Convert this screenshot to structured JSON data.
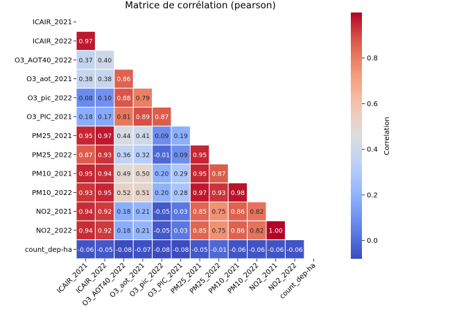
{
  "chart_data": {
    "type": "heatmap",
    "title": "Matrice de corrélation (pearson)",
    "variables": [
      "ICAIR_2021",
      "ICAIR_2022",
      "O3_AOT40_2022",
      "O3_aot_2021",
      "O3_pic_2022",
      "O3_PIC_2021",
      "PM25_2021",
      "PM25_2022",
      "PM10_2021",
      "PM10_2022",
      "NO2_2021",
      "NO2_2022",
      "count_dep-ha"
    ],
    "mask": "upper-triangle-including-diagonal",
    "values": [
      [],
      [
        0.97
      ],
      [
        0.37,
        0.4
      ],
      [
        0.38,
        0.38,
        0.86
      ],
      [
        0.08,
        0.1,
        0.88,
        0.79
      ],
      [
        0.18,
        0.17,
        0.81,
        0.89,
        0.87
      ],
      [
        0.95,
        0.97,
        0.44,
        0.41,
        0.09,
        0.19
      ],
      [
        0.87,
        0.93,
        0.36,
        0.32,
        -0.01,
        0.09,
        0.95
      ],
      [
        0.95,
        0.94,
        0.49,
        0.5,
        0.2,
        0.29,
        0.95,
        0.87
      ],
      [
        0.93,
        0.95,
        0.52,
        0.51,
        0.2,
        0.28,
        0.97,
        0.93,
        0.98
      ],
      [
        0.94,
        0.92,
        0.18,
        0.21,
        -0.05,
        0.03,
        0.85,
        0.75,
        0.86,
        0.82
      ],
      [
        0.94,
        0.92,
        0.18,
        0.21,
        -0.05,
        0.03,
        0.85,
        0.75,
        0.86,
        0.82,
        1.0
      ],
      [
        -0.06,
        -0.05,
        -0.08,
        -0.07,
        -0.08,
        -0.08,
        -0.05,
        -0.01,
        -0.06,
        -0.06,
        -0.06,
        -0.06
      ]
    ],
    "value_labels": [
      [],
      [
        "0.97"
      ],
      [
        "0.37",
        "0.40"
      ],
      [
        "0.38",
        "0.38",
        "0.86"
      ],
      [
        "0.08",
        "0.10",
        "0.88",
        "0.79"
      ],
      [
        "0.18",
        "0.17",
        "0.81",
        "0.89",
        "0.87"
      ],
      [
        "0.95",
        "0.97",
        "0.44",
        "0.41",
        "0.09",
        "0.19"
      ],
      [
        "0.87",
        "0.93",
        "0.36",
        "0.32",
        "-0.01",
        "0.09",
        "0.95"
      ],
      [
        "0.95",
        "0.94",
        "0.49",
        "0.50",
        "0.20",
        "0.29",
        "0.95",
        "0.87"
      ],
      [
        "0.93",
        "0.95",
        "0.52",
        "0.51",
        "0.20",
        "0.28",
        "0.97",
        "0.93",
        "0.98"
      ],
      [
        "0.94",
        "0.92",
        "0.18",
        "0.21",
        "-0.05",
        "0.03",
        "0.85",
        "0.75",
        "0.86",
        "0.82"
      ],
      [
        "0.94",
        "0.92",
        "0.18",
        "0.21",
        "-0.05",
        "0.03",
        "0.85",
        "0.75",
        "0.86",
        "0.82",
        "1.00"
      ],
      [
        "-0.06",
        "-0.05",
        "-0.08",
        "-0.07",
        "-0.08",
        "-0.08",
        "-0.05",
        "-0.01",
        "-0.06",
        "-0.06",
        "-0.06",
        "-0.06"
      ]
    ],
    "colorscale": "coolwarm",
    "color_range": [
      -0.08,
      1.0
    ],
    "colorbar": {
      "label": "Correlation",
      "ticks": [
        0.0,
        0.2,
        0.4,
        0.6,
        0.8
      ],
      "tick_labels": [
        "0.0",
        "0.2",
        "0.4",
        "0.6",
        "0.8"
      ]
    }
  }
}
